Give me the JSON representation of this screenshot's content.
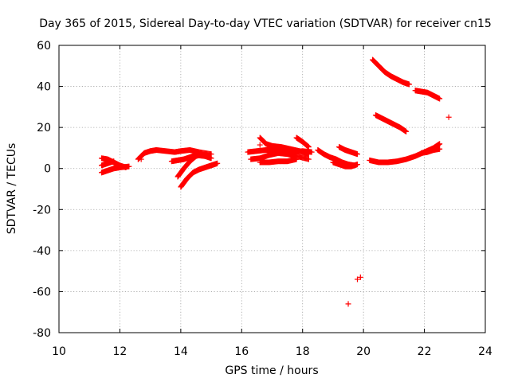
{
  "chart_data": {
    "type": "scatter",
    "title": "Day 365 of 2015, Sidereal Day-to-day VTEC variation (SDTVAR) for receiver cn15",
    "xlabel": "GPS time / hours",
    "ylabel": "SDTVAR / TECUs",
    "xlim": [
      10,
      24
    ],
    "ylim": [
      -80,
      60
    ],
    "xticks": [
      10,
      12,
      14,
      16,
      18,
      20,
      22,
      24
    ],
    "yticks": [
      -80,
      -60,
      -40,
      -20,
      0,
      20,
      40,
      60
    ],
    "grid": true,
    "marker": "+",
    "color": "#ff0000",
    "series": [
      {
        "name": "arc1",
        "x": [
          11.4,
          11.6,
          11.8,
          12.0,
          12.2
        ],
        "y": [
          5,
          4.5,
          3,
          1.5,
          0.5
        ]
      },
      {
        "name": "arc2",
        "x": [
          11.4,
          11.6,
          11.8,
          12.0,
          12.3
        ],
        "y": [
          -2,
          -1,
          0,
          0.5,
          1
        ]
      },
      {
        "name": "arc3",
        "x": [
          11.4,
          11.6,
          11.8
        ],
        "y": [
          1.5,
          2.5,
          3.5
        ]
      },
      {
        "name": "arc4",
        "x": [
          12.6,
          12.8,
          13.0,
          13.2,
          13.5,
          13.8,
          14.0,
          14.3,
          14.6,
          15.0
        ],
        "y": [
          4.5,
          7.5,
          8.5,
          9,
          8.5,
          8,
          8.5,
          9,
          8,
          7
        ]
      },
      {
        "name": "arc5",
        "x": [
          13.7,
          13.9,
          14.1,
          14.3,
          14.5,
          14.8,
          15.0
        ],
        "y": [
          3.5,
          4,
          4.5,
          5.5,
          6.5,
          6,
          5
        ]
      },
      {
        "name": "arc6",
        "x": [
          13.9,
          14.1,
          14.3,
          14.5,
          14.7
        ],
        "y": [
          -4,
          0,
          3.5,
          6,
          7
        ]
      },
      {
        "name": "arc7",
        "x": [
          14.0,
          14.2,
          14.4,
          14.6,
          14.8,
          15.0,
          15.2
        ],
        "y": [
          -9,
          -5,
          -2,
          -0.5,
          0.5,
          1.5,
          2.5
        ]
      },
      {
        "name": "arc8",
        "x": [
          16.2,
          16.5,
          16.8,
          17.1,
          17.4,
          17.7,
          18.0,
          18.3
        ],
        "y": [
          8,
          8.5,
          9,
          9,
          8.5,
          8,
          8.5,
          8
        ]
      },
      {
        "name": "arc9",
        "x": [
          16.3,
          16.6,
          16.9,
          17.2,
          17.5,
          17.8,
          18.2
        ],
        "y": [
          4.5,
          5,
          6.5,
          7.5,
          7,
          6,
          4.5
        ]
      },
      {
        "name": "arc10",
        "x": [
          16.6,
          16.9,
          17.2,
          17.5,
          17.8
        ],
        "y": [
          3,
          3,
          3.5,
          3.5,
          4.5
        ]
      },
      {
        "name": "arc11",
        "x": [
          16.6,
          16.8,
          17.0,
          17.3,
          17.6,
          17.9,
          18.2
        ],
        "y": [
          15,
          12,
          11,
          10.5,
          9.5,
          8.5,
          7
        ]
      },
      {
        "name": "arc12",
        "x": [
          17.8,
          18.0,
          18.2
        ],
        "y": [
          15,
          13,
          10.5
        ]
      },
      {
        "name": "arc13",
        "x": [
          18.5,
          18.7,
          18.9,
          19.1,
          19.3,
          19.5,
          19.7
        ],
        "y": [
          9,
          7,
          5.5,
          4.5,
          3,
          2,
          1.5
        ]
      },
      {
        "name": "arc14",
        "x": [
          19.0,
          19.2,
          19.4,
          19.6,
          19.8
        ],
        "y": [
          3,
          2,
          1,
          1,
          2
        ]
      },
      {
        "name": "arc15",
        "x": [
          19.2,
          19.4,
          19.6,
          19.8
        ],
        "y": [
          10.5,
          9,
          8,
          7
        ]
      },
      {
        "name": "arc16",
        "x": [
          20.2,
          20.5,
          20.8,
          21.1,
          21.4,
          21.7,
          22.0,
          22.3,
          22.5
        ],
        "y": [
          4,
          3,
          3,
          3.5,
          4.5,
          6,
          8,
          10,
          12
        ]
      },
      {
        "name": "arc17",
        "x": [
          21.9,
          22.1,
          22.3,
          22.5
        ],
        "y": [
          7.5,
          8,
          9,
          9.5
        ]
      },
      {
        "name": "arc18",
        "x": [
          20.3,
          20.5,
          20.7,
          20.9,
          21.1,
          21.3,
          21.5
        ],
        "y": [
          53,
          50,
          47,
          45,
          43.5,
          42,
          41
        ]
      },
      {
        "name": "arc19",
        "x": [
          20.4,
          20.6,
          20.8,
          21.0,
          21.2,
          21.4
        ],
        "y": [
          26,
          24.5,
          23,
          21.5,
          20,
          18
        ]
      },
      {
        "name": "arc20",
        "x": [
          21.7,
          21.9,
          22.1,
          22.3,
          22.5
        ],
        "y": [
          38,
          37.5,
          37,
          35.5,
          34
        ]
      },
      {
        "name": "isolated",
        "x": [
          16.6,
          12.7,
          19.5,
          19.8,
          19.9,
          22.8
        ],
        "y": [
          11.5,
          4.5,
          -66,
          -54,
          -53,
          25
        ]
      }
    ]
  }
}
